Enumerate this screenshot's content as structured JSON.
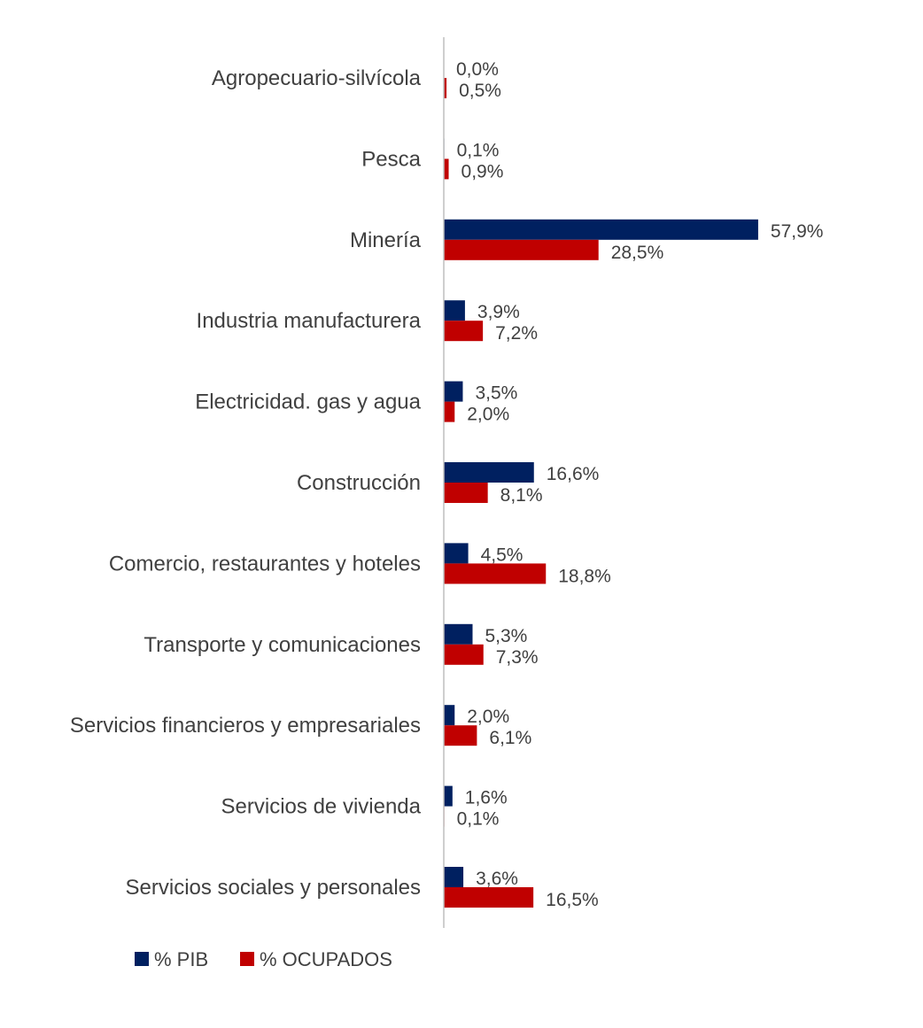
{
  "chart_data": {
    "type": "bar",
    "orientation": "horizontal",
    "categories": [
      "Agropecuario-silvícola",
      "Pesca",
      "Minería",
      "Industria manufacturera",
      "Electricidad. gas y agua",
      "Construcción",
      "Comercio, restaurantes y hoteles",
      "Transporte y comunicaciones",
      "Servicios financieros y empresariales",
      "Servicios de vivienda",
      "Servicios sociales y personales"
    ],
    "series": [
      {
        "name": "% PIB",
        "color": "#002060",
        "values": [
          0.0,
          0.1,
          57.9,
          3.9,
          3.5,
          16.6,
          4.5,
          5.3,
          2.0,
          1.6,
          3.6
        ],
        "labels": [
          "0,0%",
          "0,1%",
          "57,9%",
          "3,9%",
          "3,5%",
          "16,6%",
          "4,5%",
          "5,3%",
          "2,0%",
          "1,6%",
          "3,6%"
        ]
      },
      {
        "name": "% OCUPADOS",
        "color": "#C00000",
        "values": [
          0.5,
          0.9,
          28.5,
          7.2,
          2.0,
          8.1,
          18.8,
          7.3,
          6.1,
          0.1,
          16.5
        ],
        "labels": [
          "0,5%",
          "0,9%",
          "28,5%",
          "7,2%",
          "2,0%",
          "8,1%",
          "18,8%",
          "7,3%",
          "6,1%",
          "0,1%",
          "16,5%"
        ]
      }
    ],
    "xlim": [
      0,
      60
    ],
    "grid": false,
    "legend": "bottom-left"
  }
}
